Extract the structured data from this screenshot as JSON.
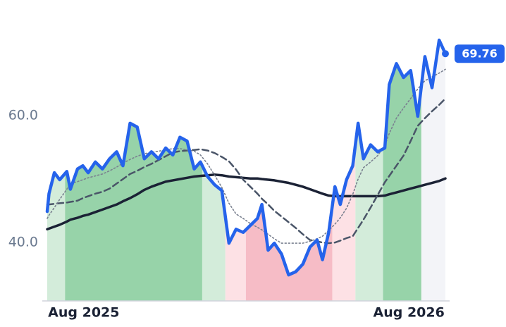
{
  "chart_data": {
    "type": "line",
    "x": [
      0,
      2,
      8,
      14,
      22,
      26,
      34,
      40,
      46,
      54,
      62,
      70,
      78,
      85,
      93,
      101,
      109,
      117,
      125,
      133,
      141,
      149,
      157,
      165,
      172,
      180,
      188,
      196,
      204,
      212,
      220,
      228,
      236,
      241,
      248,
      255,
      263,
      271,
      279,
      287,
      295,
      303,
      309,
      316,
      323,
      329,
      336,
      343,
      349,
      355,
      363,
      371,
      379,
      384,
      392,
      400,
      408,
      416,
      424,
      432,
      440,
      447
    ],
    "xlim": [
      0,
      447
    ],
    "xticks": [
      {
        "value": 41,
        "label": "Aug 2025"
      },
      {
        "value": 406,
        "label": "Aug 2026"
      }
    ],
    "ylim": [
      30.8,
      76
    ],
    "yticks": [
      {
        "value": 40,
        "label": "40.0"
      },
      {
        "value": 60,
        "label": "60.0"
      }
    ],
    "bands": [
      {
        "x0": 0,
        "x1": 20,
        "color": "#d3ecda"
      },
      {
        "x0": 20,
        "x1": 174,
        "color": "#97d3a9"
      },
      {
        "x0": 174,
        "x1": 200,
        "color": "#d3ecda"
      },
      {
        "x0": 200,
        "x1": 223,
        "color": "#fde1e5"
      },
      {
        "x0": 223,
        "x1": 320,
        "color": "#f6bcc6"
      },
      {
        "x0": 320,
        "x1": 346,
        "color": "#fde1e5"
      },
      {
        "x0": 346,
        "x1": 377,
        "color": "#d3ecda"
      },
      {
        "x0": 377,
        "x1": 420,
        "color": "#97d3a9"
      },
      {
        "x0": 420,
        "x1": 447,
        "color": "#f3f4f8"
      }
    ],
    "series": [
      {
        "color": "#1b2235",
        "style": "solid",
        "width": 3.5,
        "values": [
          42.1,
          42.2,
          42.5,
          42.8,
          43.3,
          43.6,
          43.9,
          44.2,
          44.4,
          44.8,
          45.2,
          45.6,
          46.0,
          46.5,
          47.0,
          47.6,
          48.3,
          48.8,
          49.2,
          49.6,
          49.8,
          50.0,
          50.2,
          50.4,
          50.5,
          50.6,
          50.7,
          50.6,
          50.4,
          50.3,
          50.2,
          50.1,
          50.1,
          50.0,
          49.9,
          49.8,
          49.6,
          49.4,
          49.1,
          48.8,
          48.4,
          48.0,
          47.7,
          47.4,
          47.3,
          47.3,
          47.3,
          47.3,
          47.3,
          47.3,
          47.3,
          47.3,
          47.4,
          47.6,
          47.9,
          48.2,
          48.5,
          48.8,
          49.1,
          49.4,
          49.7,
          50.1
        ]
      },
      {
        "color": "#4a5568",
        "style": "dashed",
        "width": 2.5,
        "values": [
          46.0,
          46.0,
          46.1,
          46.2,
          46.3,
          46.4,
          46.6,
          47.0,
          47.3,
          47.7,
          48.0,
          48.5,
          49.3,
          50.0,
          50.8,
          51.3,
          51.9,
          52.4,
          53.0,
          53.6,
          54.2,
          54.4,
          54.5,
          54.6,
          54.7,
          54.5,
          54.1,
          53.5,
          52.8,
          51.5,
          49.9,
          48.8,
          47.7,
          46.9,
          46.0,
          45.0,
          44.1,
          43.2,
          42.3,
          41.3,
          40.4,
          40.2,
          40.0,
          39.9,
          40.0,
          40.3,
          40.7,
          41.0,
          42.3,
          43.6,
          45.5,
          47.5,
          49.5,
          50.5,
          52.1,
          53.7,
          56.0,
          58.4,
          59.6,
          60.7,
          61.7,
          62.7
        ]
      },
      {
        "color": "#7a8190",
        "style": "dotted",
        "width": 1.6,
        "values": [
          43.8,
          44.3,
          45.5,
          46.8,
          48.4,
          49.3,
          49.6,
          49.9,
          50.2,
          50.5,
          50.8,
          51.3,
          51.9,
          52.5,
          53.1,
          53.6,
          54.0,
          54.2,
          54.4,
          54.6,
          54.8,
          54.8,
          54.6,
          54.4,
          53.8,
          52.4,
          50.6,
          48.7,
          46.2,
          44.5,
          43.8,
          43.0,
          42.4,
          42.0,
          41.3,
          40.6,
          39.9,
          39.9,
          39.9,
          39.9,
          40.2,
          40.6,
          41.0,
          41.9,
          42.9,
          43.9,
          45.4,
          47.6,
          50.0,
          51.8,
          52.7,
          53.7,
          55.3,
          57.2,
          59.6,
          61.2,
          62.7,
          64.2,
          65.5,
          66.1,
          66.7,
          67.3
        ]
      },
      {
        "color": "#2563eb",
        "style": "solid",
        "width": 4.5,
        "values": [
          44.9,
          47.7,
          51,
          49.9,
          51.2,
          48.4,
          51.6,
          52.1,
          51,
          52.7,
          51.6,
          53.2,
          54.3,
          52.1,
          58.8,
          58.2,
          53.2,
          54.3,
          53.2,
          54.9,
          53.8,
          56.6,
          56,
          51.6,
          52.7,
          50.4,
          49.1,
          48.2,
          39.9,
          42.1,
          41.6,
          42.7,
          43.8,
          46,
          38.8,
          39.9,
          38.2,
          34.9,
          35.4,
          36.6,
          39.3,
          40.4,
          37.3,
          41.6,
          48.8,
          46,
          49.9,
          52.1,
          58.8,
          53.2,
          55.4,
          54.3,
          54.9,
          64.9,
          68.2,
          66,
          67.1,
          59.9,
          69.3,
          64.4,
          71.9,
          69.76
        ]
      }
    ]
  }
}
